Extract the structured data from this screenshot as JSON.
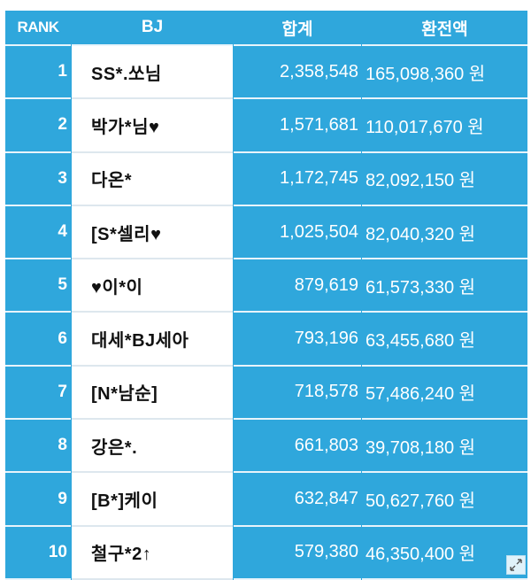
{
  "colors": {
    "accent": "#2fa7dc",
    "row_divider": "#e8f4fb",
    "name_bg": "#ffffff"
  },
  "table": {
    "headers": {
      "rank": "RANK",
      "bj": "BJ",
      "sum": "합계",
      "amount": "환전액"
    },
    "rows": [
      {
        "rank": "1",
        "bj": "SS*.쏘님",
        "sum": "2,358,548",
        "amount": "165,098,360 원"
      },
      {
        "rank": "2",
        "bj": "박가*님♥",
        "sum": "1,571,681",
        "amount": "110,017,670 원"
      },
      {
        "rank": "3",
        "bj": "다온*",
        "sum": "1,172,745",
        "amount": "82,092,150 원"
      },
      {
        "rank": "4",
        "bj": "[S*셀리♥",
        "sum": "1,025,504",
        "amount": "82,040,320 원"
      },
      {
        "rank": "5",
        "bj": "♥이*이",
        "sum": "879,619",
        "amount": "61,573,330 원"
      },
      {
        "rank": "6",
        "bj": "대세*BJ세아",
        "sum": "793,196",
        "amount": "63,455,680 원"
      },
      {
        "rank": "7",
        "bj": "[N*남순]",
        "sum": "718,578",
        "amount": "57,486,240 원"
      },
      {
        "rank": "8",
        "bj": "강은*.",
        "sum": "661,803",
        "amount": "39,708,180 원"
      },
      {
        "rank": "9",
        "bj": "[B*]케이",
        "sum": "632,847",
        "amount": "50,627,760 원"
      },
      {
        "rank": "10",
        "bj": "철구*2↑",
        "sum": "579,380",
        "amount": "46,350,400 원"
      }
    ]
  },
  "expand_button": {
    "icon": "expand-icon"
  }
}
